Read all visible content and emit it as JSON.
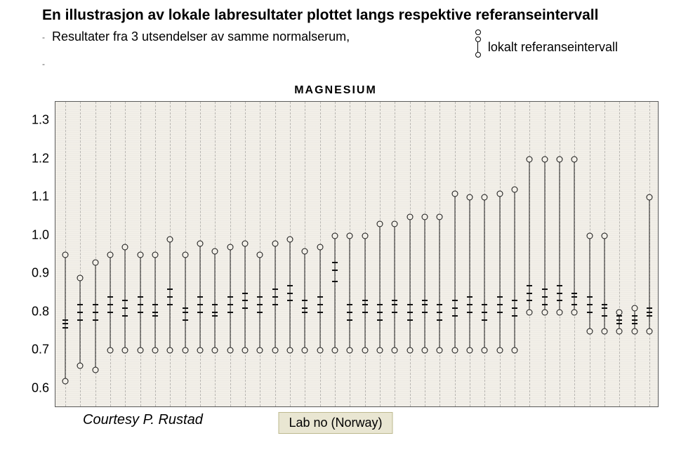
{
  "title": "En illustrasjon av lokale labresultater plottet langs respektive referanseintervall",
  "subtitle": "Resultater fra 3 utsendelser av samme normalserum,",
  "legend": {
    "points_label": "",
    "bar_label": "lokalt referanseintervall"
  },
  "credit": "Courtesy P. Rustad",
  "xlabel": "Lab no (Norway)",
  "chart": {
    "title": "MAGNESIUM",
    "background_color": "#f2efe8",
    "border_color": "#5a5a5a",
    "grid_color": "rgba(80,80,80,0.35)",
    "ymin": 0.55,
    "ymax": 1.35,
    "yticks": [
      0.6,
      0.7,
      0.8,
      0.9,
      1.0,
      1.1,
      1.2,
      1.3
    ],
    "ytick_labels": [
      "0.6",
      "0.7",
      "0.8",
      "0.9",
      "1.0",
      "1.1",
      "1.2",
      "1.3"
    ],
    "tick_fontsize": 18,
    "labs": [
      {
        "ri_lo": 0.62,
        "ri_hi": 0.95,
        "pts": [
          0.76,
          0.77,
          0.78
        ]
      },
      {
        "ri_lo": 0.66,
        "ri_hi": 0.89,
        "pts": [
          0.78,
          0.8,
          0.82
        ]
      },
      {
        "ri_lo": 0.65,
        "ri_hi": 0.93,
        "pts": [
          0.78,
          0.8,
          0.82
        ]
      },
      {
        "ri_lo": 0.7,
        "ri_hi": 0.95,
        "pts": [
          0.8,
          0.82,
          0.84
        ]
      },
      {
        "ri_lo": 0.7,
        "ri_hi": 0.97,
        "pts": [
          0.79,
          0.81,
          0.83
        ]
      },
      {
        "ri_lo": 0.7,
        "ri_hi": 0.95,
        "pts": [
          0.8,
          0.82,
          0.84
        ]
      },
      {
        "ri_lo": 0.7,
        "ri_hi": 0.95,
        "pts": [
          0.79,
          0.8,
          0.82
        ]
      },
      {
        "ri_lo": 0.7,
        "ri_hi": 0.99,
        "pts": [
          0.82,
          0.84,
          0.86
        ]
      },
      {
        "ri_lo": 0.7,
        "ri_hi": 0.95,
        "pts": [
          0.78,
          0.8,
          0.81
        ]
      },
      {
        "ri_lo": 0.7,
        "ri_hi": 0.98,
        "pts": [
          0.8,
          0.82,
          0.84
        ]
      },
      {
        "ri_lo": 0.7,
        "ri_hi": 0.96,
        "pts": [
          0.79,
          0.8,
          0.82
        ]
      },
      {
        "ri_lo": 0.7,
        "ri_hi": 0.97,
        "pts": [
          0.8,
          0.82,
          0.84
        ]
      },
      {
        "ri_lo": 0.7,
        "ri_hi": 0.98,
        "pts": [
          0.81,
          0.83,
          0.85
        ]
      },
      {
        "ri_lo": 0.7,
        "ri_hi": 0.95,
        "pts": [
          0.8,
          0.82,
          0.84
        ]
      },
      {
        "ri_lo": 0.7,
        "ri_hi": 0.98,
        "pts": [
          0.82,
          0.84,
          0.86
        ]
      },
      {
        "ri_lo": 0.7,
        "ri_hi": 0.99,
        "pts": [
          0.83,
          0.85,
          0.87
        ]
      },
      {
        "ri_lo": 0.7,
        "ri_hi": 0.96,
        "pts": [
          0.8,
          0.81,
          0.83
        ]
      },
      {
        "ri_lo": 0.7,
        "ri_hi": 0.97,
        "pts": [
          0.8,
          0.82,
          0.84
        ]
      },
      {
        "ri_lo": 0.7,
        "ri_hi": 1.0,
        "pts": [
          0.88,
          0.91,
          0.93
        ]
      },
      {
        "ri_lo": 0.7,
        "ri_hi": 1.0,
        "pts": [
          0.78,
          0.8,
          0.82
        ]
      },
      {
        "ri_lo": 0.7,
        "ri_hi": 1.0,
        "pts": [
          0.8,
          0.82,
          0.83
        ]
      },
      {
        "ri_lo": 0.7,
        "ri_hi": 1.03,
        "pts": [
          0.78,
          0.8,
          0.82
        ]
      },
      {
        "ri_lo": 0.7,
        "ri_hi": 1.03,
        "pts": [
          0.8,
          0.82,
          0.83
        ]
      },
      {
        "ri_lo": 0.7,
        "ri_hi": 1.05,
        "pts": [
          0.78,
          0.8,
          0.82
        ]
      },
      {
        "ri_lo": 0.7,
        "ri_hi": 1.05,
        "pts": [
          0.8,
          0.82,
          0.83
        ]
      },
      {
        "ri_lo": 0.7,
        "ri_hi": 1.05,
        "pts": [
          0.78,
          0.8,
          0.82
        ]
      },
      {
        "ri_lo": 0.7,
        "ri_hi": 1.11,
        "pts": [
          0.79,
          0.81,
          0.83
        ]
      },
      {
        "ri_lo": 0.7,
        "ri_hi": 1.1,
        "pts": [
          0.8,
          0.82,
          0.84
        ]
      },
      {
        "ri_lo": 0.7,
        "ri_hi": 1.1,
        "pts": [
          0.78,
          0.8,
          0.82
        ]
      },
      {
        "ri_lo": 0.7,
        "ri_hi": 1.11,
        "pts": [
          0.8,
          0.82,
          0.84
        ]
      },
      {
        "ri_lo": 0.7,
        "ri_hi": 1.12,
        "pts": [
          0.79,
          0.81,
          0.83
        ]
      },
      {
        "ri_lo": 0.8,
        "ri_hi": 1.2,
        "pts": [
          0.83,
          0.85,
          0.87
        ]
      },
      {
        "ri_lo": 0.8,
        "ri_hi": 1.2,
        "pts": [
          0.82,
          0.84,
          0.86
        ]
      },
      {
        "ri_lo": 0.8,
        "ri_hi": 1.2,
        "pts": [
          0.83,
          0.85,
          0.87
        ]
      },
      {
        "ri_lo": 0.8,
        "ri_hi": 1.2,
        "pts": [
          0.82,
          0.84,
          0.85
        ]
      },
      {
        "ri_lo": 0.75,
        "ri_hi": 1.0,
        "pts": [
          0.8,
          0.82,
          0.84
        ]
      },
      {
        "ri_lo": 0.75,
        "ri_hi": 1.0,
        "pts": [
          0.79,
          0.81,
          0.82
        ]
      },
      {
        "ri_lo": 0.75,
        "ri_hi": 0.8,
        "pts": [
          0.77,
          0.78,
          0.79
        ]
      },
      {
        "ri_lo": 0.75,
        "ri_hi": 0.81,
        "pts": [
          0.77,
          0.78,
          0.79
        ]
      },
      {
        "ri_lo": 0.75,
        "ri_hi": 1.1,
        "pts": [
          0.79,
          0.8,
          0.81
        ]
      }
    ]
  }
}
